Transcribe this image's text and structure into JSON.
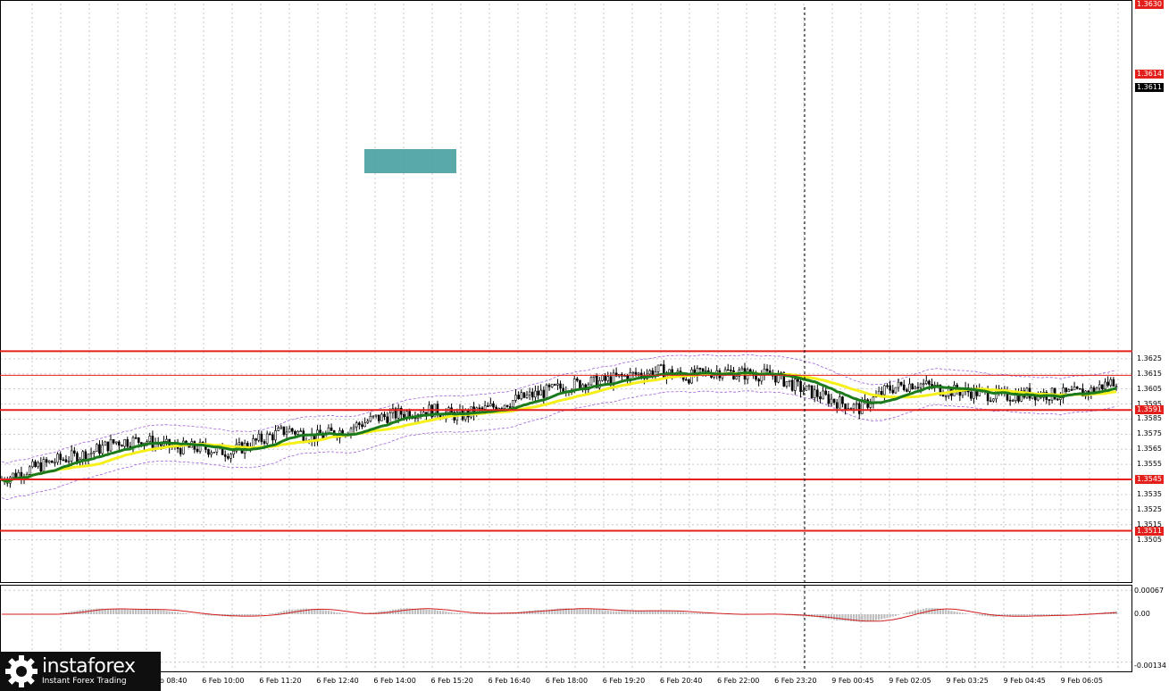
{
  "price_axis": {
    "ticks": [
      "1.3625",
      "1.3615",
      "1.3605",
      "1.3595",
      "1.3585",
      "1.3575",
      "1.3565",
      "1.3555",
      "1.3545",
      "1.3535",
      "1.3525",
      "1.3515",
      "1.3505"
    ],
    "level_labels": [
      "1.3630",
      "1.3614",
      "1.3611",
      "1.3591",
      "1.3545",
      "1.3511"
    ]
  },
  "indicator_axis": {
    "ticks": [
      "0.00067",
      "0.00",
      "-0.00134"
    ]
  },
  "time_axis": {
    "labels": [
      "6 Feb 08:40",
      "6 Feb 10:00",
      "6 Feb 11:20",
      "6 Feb 12:40",
      "6 Feb 14:00",
      "6 Feb 15:20",
      "6 Feb 16:40",
      "6 Feb 18:00",
      "6 Feb 19:20",
      "6 Feb 20:40",
      "6 Feb 22:00",
      "6 Feb 23:20",
      "9 Feb 00:45",
      "9 Feb 02:05",
      "9 Feb 03:25",
      "9 Feb 04:45",
      "9 Feb 06:05"
    ]
  },
  "logo": {
    "brand": "instaforex",
    "tagline": "Instant Forex Trading"
  },
  "colors": {
    "level_line": "#e3201b",
    "ma_fast": "#1b7a1b",
    "ma_slow": "#f5ef1a",
    "envelope": "#a15fd8",
    "highlight_box": "#3d9a9a",
    "histogram": "#bdbdbd",
    "signal_line": "#d11d1d"
  },
  "chart_data": {
    "type": "candlestick",
    "symbol_price_range": [
      1.35,
      1.363
    ],
    "horizontal_levels": [
      1.363,
      1.3614,
      1.3591,
      1.3545,
      1.3511
    ],
    "current_price": 1.3611,
    "series": [
      {
        "name": "",
        "values": [
          1.3545,
          1.3552,
          1.3558,
          1.3562,
          1.357,
          1.3571,
          1.3566,
          1.3566,
          1.3563,
          1.3571,
          1.3578,
          1.3573,
          1.3578,
          1.3585,
          1.3589,
          1.3591,
          1.3587,
          1.3592,
          1.3598,
          1.3603,
          1.3608,
          1.361,
          1.3614,
          1.3617,
          1.3613,
          1.3617,
          1.3615,
          1.3614,
          1.3605,
          1.3598,
          1.3592,
          1.3605,
          1.3609,
          1.3604,
          1.3603,
          1.36,
          1.3602,
          1.3601,
          1.3603,
          1.3611
        ]
      }
    ]
  }
}
